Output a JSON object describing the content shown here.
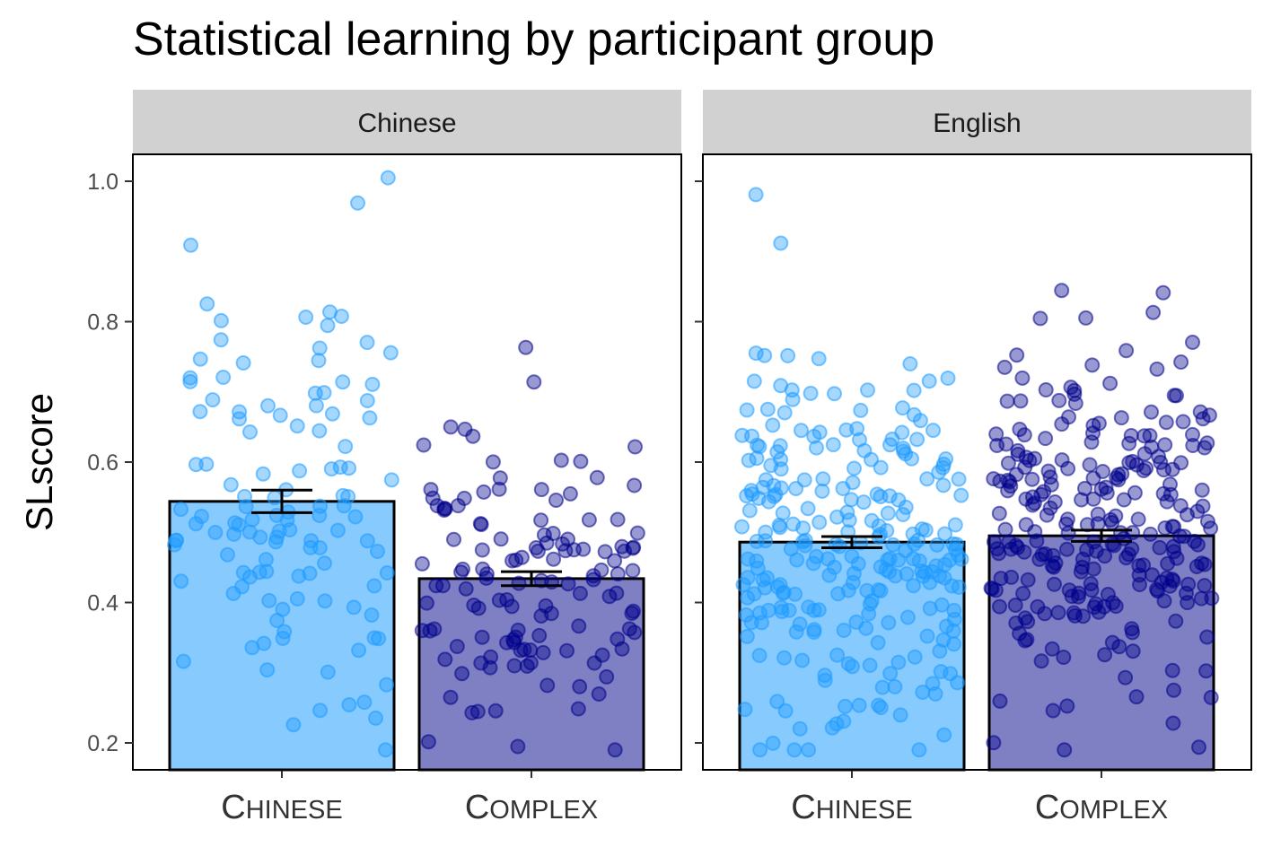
{
  "chart_data": {
    "type": "bar",
    "title": "Statistical learning by participant group",
    "ylabel": "SLscore",
    "xlabel": "",
    "ylim": [
      0.16,
      1.035
    ],
    "yticks": [
      0.2,
      0.4,
      0.6,
      0.8,
      1.0
    ],
    "ytick_labels": [
      "0.2",
      "0.4",
      "0.6",
      "0.8",
      "1.0"
    ],
    "categories": [
      "Chinese",
      "Complex"
    ],
    "grid": false,
    "colors": {
      "Chinese_bar": "#87cafe",
      "Complex_bar": "#7f7fc4",
      "Chinese_point": "#1e9bff",
      "Complex_point": "#00008b"
    },
    "panels": [
      {
        "name": "Chinese",
        "bars": [
          {
            "category": "Chinese",
            "mean": 0.544,
            "se_low": 0.528,
            "se_high": 0.56,
            "n": 120
          },
          {
            "category": "Complex",
            "mean": 0.434,
            "se_low": 0.424,
            "se_high": 0.444,
            "n": 130
          }
        ]
      },
      {
        "name": "English",
        "bars": [
          {
            "category": "Chinese",
            "mean": 0.486,
            "se_low": 0.478,
            "se_high": 0.494,
            "n": 260
          },
          {
            "category": "Complex",
            "mean": 0.495,
            "se_low": 0.487,
            "se_high": 0.503,
            "n": 260
          }
        ]
      }
    ]
  }
}
